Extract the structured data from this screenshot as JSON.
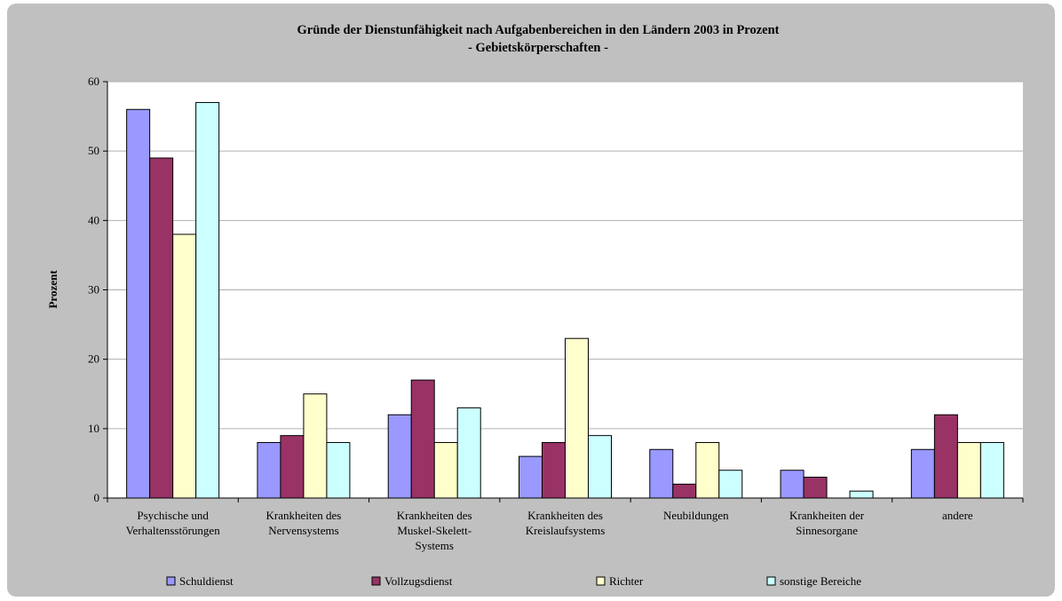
{
  "chart_data": {
    "type": "bar",
    "title": "Gründe der Dienstunfähigkeit nach Aufgabenbereichen in den Ländern 2003 in Prozent",
    "subtitle": "- Gebietskörperschaften -",
    "ylabel": "Prozent",
    "xlabel": "",
    "ylim": [
      0,
      60
    ],
    "yticks": [
      "0",
      "10",
      "20",
      "30",
      "40",
      "50",
      "60"
    ],
    "grid": true,
    "legend_position": "bottom",
    "categories": [
      [
        "Psychische und",
        "Verhaltensstörungen"
      ],
      [
        "Krankheiten des",
        "Nervensystems"
      ],
      [
        "Krankheiten des",
        "Muskel-Skelett-",
        "Systems"
      ],
      [
        "Krankheiten des",
        "Kreislaufsystems"
      ],
      [
        "Neubildungen"
      ],
      [
        "Krankheiten der",
        "Sinnesorgane"
      ],
      [
        "andere"
      ]
    ],
    "series": [
      {
        "name": "Schuldienst",
        "color": "#9999ff",
        "values": [
          56,
          8,
          12,
          6,
          7,
          4,
          7
        ]
      },
      {
        "name": "Vollzugsdienst",
        "color": "#993366",
        "values": [
          49,
          9,
          17,
          8,
          2,
          3,
          12
        ]
      },
      {
        "name": "Richter",
        "color": "#ffffcc",
        "values": [
          38,
          15,
          8,
          23,
          8,
          0,
          8
        ]
      },
      {
        "name": "sonstige Bereiche",
        "color": "#ccffff",
        "values": [
          57,
          8,
          13,
          9,
          4,
          1,
          8
        ]
      }
    ]
  }
}
